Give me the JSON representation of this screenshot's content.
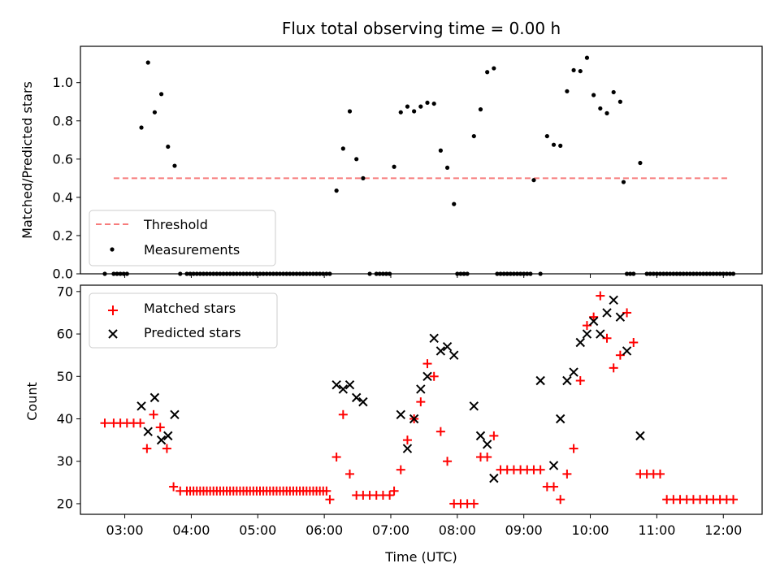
{
  "chart_data": [
    {
      "type": "scatter",
      "title": "Flux total observing time = 0.00 h",
      "xlabel": "",
      "ylabel": "Matched/Predicted stars",
      "xlim": [
        "02:20",
        "12:35"
      ],
      "ylim": [
        0,
        1.19
      ],
      "xticks": [
        "03:00",
        "04:00",
        "05:00",
        "06:00",
        "07:00",
        "08:00",
        "09:00",
        "10:00",
        "11:00",
        "12:00"
      ],
      "yticks": [
        "0.0",
        "0.2",
        "0.4",
        "0.6",
        "0.8",
        "1.0"
      ],
      "legend_position": "lower-left",
      "threshold": {
        "name": "Threshold",
        "value": 0.5,
        "x_range": [
          "02:50",
          "12:05"
        ],
        "color": "#f77c7c",
        "style": "dashed"
      },
      "series": [
        {
          "name": "Measurements",
          "marker": "dot",
          "color": "#000000",
          "x": [
            "02:42",
            "02:50",
            "02:53",
            "02:56",
            "02:59",
            "03:02",
            "03:15",
            "03:21",
            "03:27",
            "03:33",
            "03:39",
            "03:45",
            "03:50",
            "03:56",
            "03:59",
            "04:02",
            "04:05",
            "04:08",
            "04:11",
            "04:14",
            "04:17",
            "04:20",
            "04:23",
            "04:26",
            "04:29",
            "04:32",
            "04:35",
            "04:38",
            "04:41",
            "04:44",
            "04:47",
            "04:50",
            "04:53",
            "04:56",
            "04:59",
            "05:02",
            "05:05",
            "05:08",
            "05:11",
            "05:14",
            "05:17",
            "05:20",
            "05:23",
            "05:26",
            "05:29",
            "05:32",
            "05:35",
            "05:38",
            "05:41",
            "05:44",
            "05:47",
            "05:50",
            "05:53",
            "05:56",
            "05:59",
            "06:02",
            "06:05",
            "06:11",
            "06:17",
            "06:23",
            "06:29",
            "06:35",
            "06:41",
            "06:47",
            "06:50",
            "06:53",
            "06:56",
            "06:59",
            "07:03",
            "07:09",
            "07:15",
            "07:21",
            "07:27",
            "07:33",
            "07:39",
            "07:45",
            "07:51",
            "07:57",
            "08:00",
            "08:03",
            "08:06",
            "08:09",
            "08:15",
            "08:21",
            "08:27",
            "08:33",
            "08:36",
            "08:39",
            "08:42",
            "08:45",
            "08:48",
            "08:51",
            "08:54",
            "08:57",
            "09:00",
            "09:03",
            "09:06",
            "09:09",
            "09:15",
            "09:21",
            "09:27",
            "09:33",
            "09:39",
            "09:45",
            "09:51",
            "09:57",
            "10:03",
            "10:09",
            "10:15",
            "10:21",
            "10:27",
            "10:30",
            "10:33",
            "10:36",
            "10:39",
            "10:45",
            "10:51",
            "10:54",
            "10:57",
            "11:00",
            "11:03",
            "11:06",
            "11:09",
            "11:12",
            "11:15",
            "11:18",
            "11:21",
            "11:24",
            "11:27",
            "11:30",
            "11:33",
            "11:36",
            "11:39",
            "11:42",
            "11:45",
            "11:48",
            "11:51",
            "11:54",
            "11:57",
            "12:00",
            "12:03",
            "12:06",
            "12:09"
          ],
          "y": [
            0,
            0,
            0,
            0,
            0,
            0,
            0.765,
            1.105,
            0.845,
            0.94,
            0.665,
            0.565,
            0,
            0,
            0,
            0,
            0,
            0,
            0,
            0,
            0,
            0,
            0,
            0,
            0,
            0,
            0,
            0,
            0,
            0,
            0,
            0,
            0,
            0,
            0,
            0,
            0,
            0,
            0,
            0,
            0,
            0,
            0,
            0,
            0,
            0,
            0,
            0,
            0,
            0,
            0,
            0,
            0,
            0,
            0,
            0,
            0,
            0.435,
            0.655,
            0.85,
            0.6,
            0.5,
            0,
            0,
            0,
            0,
            0,
            0,
            0.56,
            0.845,
            0.875,
            0.85,
            0.875,
            0.895,
            0.89,
            0.645,
            0.555,
            0.365,
            0,
            0,
            0,
            0,
            0.72,
            0.86,
            1.055,
            1.075,
            0,
            0,
            0,
            0,
            0,
            0,
            0,
            0,
            0,
            0,
            0,
            0.49,
            0,
            0.72,
            0.675,
            0.67,
            0.955,
            1.065,
            1.06,
            1.13,
            0.935,
            0.865,
            0.84,
            0.95,
            0.9,
            0.48,
            0,
            0,
            0,
            0.58,
            0,
            0,
            0,
            0,
            0,
            0,
            0,
            0,
            0,
            0,
            0,
            0,
            0,
            0,
            0,
            0,
            0,
            0,
            0,
            0,
            0,
            0,
            0,
            0,
            0,
            0,
            0
          ]
        }
      ]
    },
    {
      "type": "scatter",
      "title": "",
      "xlabel": "Time (UTC)",
      "ylabel": "Count",
      "xlim": [
        "02:20",
        "12:35"
      ],
      "ylim": [
        17.5,
        71.5
      ],
      "xticks": [
        "03:00",
        "04:00",
        "05:00",
        "06:00",
        "07:00",
        "08:00",
        "09:00",
        "10:00",
        "11:00",
        "12:00"
      ],
      "yticks": [
        "20",
        "30",
        "40",
        "50",
        "60",
        "70"
      ],
      "legend_position": "upper-left",
      "series": [
        {
          "name": "Matched stars",
          "marker": "plus",
          "color": "#ff0000",
          "x": [
            "02:42",
            "02:50",
            "02:56",
            "03:02",
            "03:08",
            "03:14",
            "03:20",
            "03:26",
            "03:32",
            "03:38",
            "03:44",
            "03:50",
            "03:56",
            "03:59",
            "04:02",
            "04:05",
            "04:08",
            "04:11",
            "04:14",
            "04:17",
            "04:20",
            "04:23",
            "04:26",
            "04:29",
            "04:32",
            "04:35",
            "04:38",
            "04:41",
            "04:44",
            "04:47",
            "04:50",
            "04:53",
            "04:56",
            "04:59",
            "05:02",
            "05:05",
            "05:08",
            "05:11",
            "05:14",
            "05:17",
            "05:20",
            "05:23",
            "05:26",
            "05:29",
            "05:32",
            "05:35",
            "05:38",
            "05:41",
            "05:44",
            "05:47",
            "05:50",
            "05:53",
            "05:56",
            "05:59",
            "06:02",
            "06:05",
            "06:11",
            "06:17",
            "06:23",
            "06:29",
            "06:35",
            "06:41",
            "06:47",
            "06:53",
            "06:59",
            "07:03",
            "07:09",
            "07:15",
            "07:21",
            "07:27",
            "07:33",
            "07:39",
            "07:45",
            "07:51",
            "07:57",
            "08:03",
            "08:09",
            "08:15",
            "08:21",
            "08:27",
            "08:33",
            "08:39",
            "08:45",
            "08:51",
            "08:57",
            "09:03",
            "09:09",
            "09:15",
            "09:21",
            "09:27",
            "09:33",
            "09:39",
            "09:45",
            "09:51",
            "09:57",
            "10:03",
            "10:09",
            "10:15",
            "10:21",
            "10:27",
            "10:33",
            "10:39",
            "10:45",
            "10:51",
            "10:57",
            "11:03",
            "11:09",
            "11:15",
            "11:21",
            "11:27",
            "11:33",
            "11:39",
            "11:45",
            "11:51",
            "11:57",
            "12:03",
            "12:09"
          ],
          "y": [
            39,
            39,
            39,
            39,
            39,
            39,
            33,
            41,
            38,
            33,
            24,
            23,
            23,
            23,
            23,
            23,
            23,
            23,
            23,
            23,
            23,
            23,
            23,
            23,
            23,
            23,
            23,
            23,
            23,
            23,
            23,
            23,
            23,
            23,
            23,
            23,
            23,
            23,
            23,
            23,
            23,
            23,
            23,
            23,
            23,
            23,
            23,
            23,
            23,
            23,
            23,
            23,
            23,
            23,
            23,
            21,
            31,
            41,
            27,
            22,
            22,
            22,
            22,
            22,
            22,
            23,
            28,
            35,
            40,
            44,
            53,
            50,
            37,
            30,
            20,
            20,
            20,
            20,
            31,
            31,
            36,
            28,
            28,
            28,
            28,
            28,
            28,
            28,
            24,
            24,
            21,
            27,
            33,
            49,
            62,
            64,
            69,
            59,
            52,
            55,
            65,
            58,
            27,
            27,
            27,
            27,
            21,
            21,
            21,
            21,
            21,
            21,
            21,
            21,
            21,
            21,
            21
          ]
        },
        {
          "name": "Predicted stars",
          "marker": "x",
          "color": "#000000",
          "x": [
            "03:15",
            "03:21",
            "03:27",
            "03:33",
            "03:39",
            "03:45",
            "06:11",
            "06:17",
            "06:23",
            "06:29",
            "06:35",
            "07:09",
            "07:15",
            "07:21",
            "07:27",
            "07:33",
            "07:39",
            "07:45",
            "07:51",
            "07:57",
            "08:15",
            "08:21",
            "08:27",
            "08:33",
            "09:15",
            "09:27",
            "09:33",
            "09:39",
            "09:45",
            "09:51",
            "09:57",
            "10:03",
            "10:09",
            "10:15",
            "10:21",
            "10:27",
            "10:33",
            "10:45"
          ],
          "y": [
            43,
            37,
            45,
            35,
            36,
            41,
            48,
            47,
            48,
            45,
            44,
            41,
            33,
            40,
            47,
            50,
            59,
            56,
            57,
            55,
            43,
            36,
            34,
            26,
            49,
            29,
            40,
            49,
            51,
            58,
            60,
            63,
            60,
            65,
            68,
            64,
            56,
            36
          ]
        }
      ]
    }
  ]
}
